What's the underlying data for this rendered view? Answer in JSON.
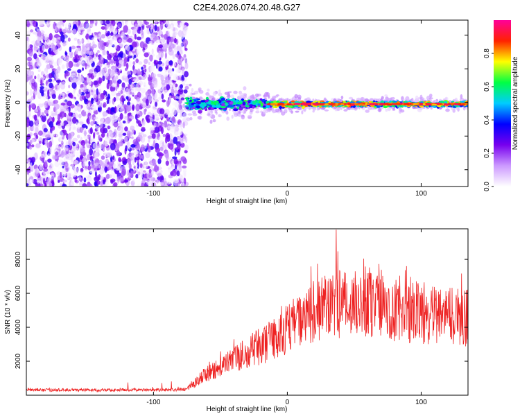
{
  "figure_title": "C2E4.2026.074.20.48.G27",
  "chart_data": [
    {
      "type": "heatmap",
      "title": "C2E4.2026.074.20.48.G27",
      "xlabel": "Height of straight line (km)",
      "ylabel": "Frequency (Hz)",
      "xlim": [
        -195,
        135
      ],
      "ylim": [
        -50,
        49
      ],
      "x_ticks": [
        -100,
        0,
        100
      ],
      "x_tick_labels": [
        "-100",
        "0",
        "100"
      ],
      "y_ticks": [
        -40,
        -20,
        0,
        20,
        40
      ],
      "y_tick_labels": [
        "-40",
        "-20",
        "0",
        "20",
        "40"
      ],
      "noise_region_x": [
        -195,
        -75
      ],
      "signal_band": {
        "x_range": [
          -75,
          135
        ],
        "center_frequency": -1,
        "spread_near_start": 6,
        "spread_far": 2
      },
      "colorbar": {
        "label": "Normalized spectral amplitude",
        "range": [
          0,
          1
        ],
        "ticks": [
          0.0,
          0.2,
          0.4,
          0.6,
          0.8
        ],
        "tick_labels": [
          "0.0",
          "0.2",
          "0.4",
          "0.6",
          "0.8"
        ],
        "colors": [
          "#ffffff",
          "#cc99ff",
          "#7700ee",
          "#0000ff",
          "#00ccff",
          "#00ff44",
          "#ffff00",
          "#ff2200",
          "#ff0099"
        ]
      }
    },
    {
      "type": "line",
      "xlabel": "Height of straight line (km)",
      "ylabel": "SNR (10 * v/v)",
      "xlim": [
        -195,
        135
      ],
      "ylim": [
        0,
        9800
      ],
      "x_ticks": [
        -100,
        0,
        100
      ],
      "x_tick_labels": [
        "-100",
        "0",
        "100"
      ],
      "y_ticks": [
        2000,
        4000,
        6000,
        8000
      ],
      "y_tick_labels": [
        "2000",
        "4000",
        "6000",
        "8000"
      ],
      "series": [
        {
          "name": "SNR",
          "color": "#ee2222",
          "x": [
            -195,
            -180,
            -160,
            -140,
            -120,
            -100,
            -85,
            -75,
            -68,
            -60,
            -50,
            -40,
            -30,
            -20,
            -10,
            0,
            10,
            20,
            30,
            40,
            50,
            60,
            70,
            80,
            90,
            100,
            110,
            120,
            130,
            135
          ],
          "values": [
            350,
            300,
            320,
            300,
            330,
            300,
            320,
            350,
            800,
            1300,
            1700,
            2100,
            2500,
            2900,
            3300,
            3900,
            4400,
            4800,
            5200,
            5400,
            5600,
            5500,
            5200,
            5000,
            4800,
            4900,
            4700,
            4700,
            4600,
            4600
          ]
        }
      ]
    }
  ]
}
